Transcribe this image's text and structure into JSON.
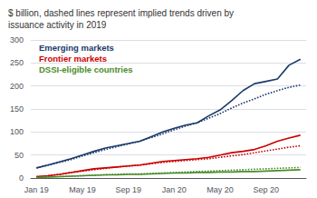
{
  "chart_data": {
    "type": "line",
    "title": "$ billion, dashed lines represent implied trends driven by\nissuance activity in 2019",
    "categories": [
      "Jan 19",
      null,
      null,
      null,
      "May 19",
      null,
      null,
      null,
      "Sep 19",
      null,
      null,
      null,
      "Jan 20",
      null,
      null,
      null,
      "May 20",
      null,
      null,
      null,
      "Sep 20",
      null,
      null,
      null
    ],
    "series": [
      {
        "name": "Emerging markets",
        "color": "#1a3a6b",
        "line_style": "solid",
        "values": [
          22,
          28,
          35,
          42,
          50,
          58,
          65,
          70,
          75,
          80,
          90,
          100,
          108,
          115,
          120,
          135,
          148,
          168,
          190,
          205,
          210,
          215,
          245,
          258
        ]
      },
      {
        "name": "Emerging markets",
        "color": "#1a3a6b",
        "line_style": "dotted",
        "values": [
          22,
          28,
          34,
          40,
          48,
          55,
          62,
          68,
          74,
          80,
          88,
          96,
          105,
          113,
          120,
          130,
          140,
          152,
          163,
          172,
          182,
          190,
          197,
          202
        ]
      },
      {
        "name": "Frontier markets",
        "color": "#cc0000",
        "line_style": "solid",
        "values": [
          3,
          5,
          8,
          12,
          16,
          20,
          22,
          24,
          26,
          28,
          32,
          36,
          38,
          40,
          42,
          45,
          50,
          55,
          58,
          62,
          70,
          80,
          87,
          93
        ]
      },
      {
        "name": "Frontier markets",
        "color": "#cc0000",
        "line_style": "dotted",
        "values": [
          3,
          5,
          8,
          12,
          15,
          18,
          21,
          24,
          26,
          28,
          31,
          34,
          36,
          38,
          40,
          42,
          45,
          48,
          51,
          55,
          59,
          63,
          67,
          70
        ]
      },
      {
        "name": "DSSI-eligible countries",
        "color": "#4a8c2a",
        "line_style": "solid",
        "values": [
          1,
          2,
          3,
          4,
          5,
          6,
          7,
          7,
          8,
          8,
          9,
          10,
          11,
          11,
          12,
          12,
          13,
          13,
          14,
          14,
          15,
          16,
          17,
          18
        ]
      },
      {
        "name": "DSSI-eligible countries",
        "color": "#4a8c2a",
        "line_style": "dotted",
        "values": [
          1,
          2,
          3,
          4,
          5,
          6,
          7,
          8,
          9,
          9,
          10,
          11,
          12,
          13,
          14,
          15,
          16,
          17,
          18,
          19,
          20,
          21,
          22,
          23
        ]
      }
    ],
    "ylim": [
      0,
      300
    ],
    "yticks": [
      0,
      50,
      100,
      150,
      200,
      250,
      300
    ],
    "grid": true,
    "legend": "upper left"
  }
}
